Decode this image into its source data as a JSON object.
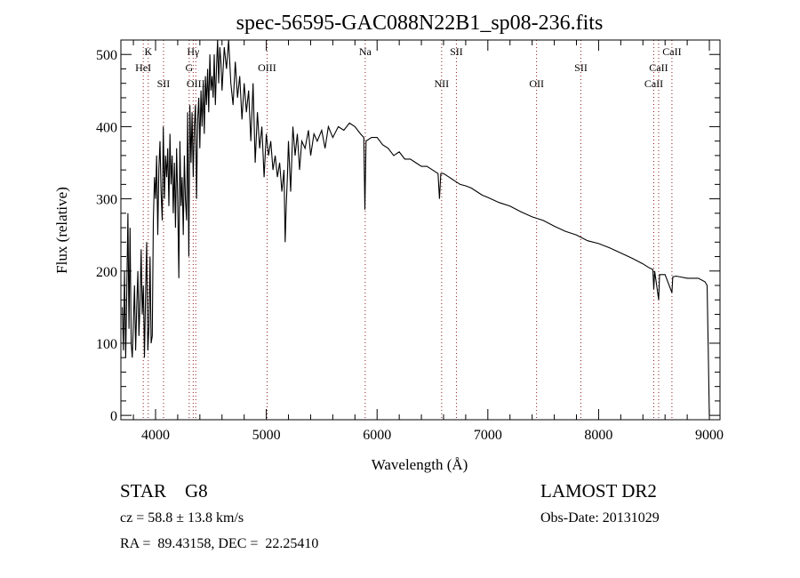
{
  "chart_data": {
    "type": "line",
    "title": "spec-56595-GAC088N22B1_sp08-236.fits",
    "xlabel": "Wavelength (Å)",
    "ylabel": "Flux (relative)",
    "xlim": [
      3687,
      9096
    ],
    "ylim": [
      -6,
      520
    ],
    "xticks": [
      4000,
      5000,
      6000,
      7000,
      8000,
      9000
    ],
    "yticks": [
      0,
      100,
      200,
      300,
      400,
      500
    ],
    "grid": false,
    "series": [
      {
        "name": "spectrum",
        "x": [
          3700,
          3710,
          3720,
          3730,
          3740,
          3750,
          3760,
          3770,
          3780,
          3790,
          3800,
          3810,
          3820,
          3830,
          3840,
          3850,
          3860,
          3870,
          3880,
          3890,
          3900,
          3910,
          3920,
          3930,
          3940,
          3950,
          3960,
          3970,
          3980,
          3990,
          4000,
          4010,
          4020,
          4030,
          4040,
          4050,
          4060,
          4070,
          4080,
          4090,
          4100,
          4110,
          4120,
          4130,
          4140,
          4150,
          4160,
          4170,
          4180,
          4190,
          4200,
          4210,
          4220,
          4230,
          4240,
          4250,
          4260,
          4270,
          4280,
          4290,
          4300,
          4310,
          4320,
          4330,
          4340,
          4350,
          4360,
          4370,
          4380,
          4390,
          4400,
          4410,
          4420,
          4430,
          4440,
          4450,
          4460,
          4470,
          4480,
          4490,
          4500,
          4510,
          4520,
          4530,
          4540,
          4550,
          4560,
          4570,
          4580,
          4590,
          4600,
          4620,
          4640,
          4660,
          4680,
          4700,
          4720,
          4740,
          4760,
          4780,
          4800,
          4820,
          4840,
          4860,
          4880,
          4900,
          4920,
          4940,
          4960,
          4980,
          5000,
          5020,
          5040,
          5060,
          5080,
          5100,
          5120,
          5140,
          5160,
          5170,
          5180,
          5190,
          5200,
          5220,
          5240,
          5260,
          5280,
          5300,
          5320,
          5350,
          5380,
          5400,
          5430,
          5460,
          5500,
          5530,
          5560,
          5600,
          5650,
          5700,
          5750,
          5800,
          5850,
          5880,
          5890,
          5900,
          5950,
          6000,
          6050,
          6100,
          6150,
          6200,
          6250,
          6300,
          6350,
          6400,
          6450,
          6500,
          6550,
          6563,
          6575,
          6600,
          6650,
          6700,
          6750,
          6800,
          6850,
          6900,
          6950,
          7000,
          7100,
          7200,
          7300,
          7400,
          7500,
          7600,
          7700,
          7800,
          7900,
          8000,
          8100,
          8200,
          8300,
          8400,
          8450,
          8490,
          8498,
          8506,
          8542,
          8550,
          8600,
          8662,
          8670,
          8700,
          8800,
          8900,
          8960,
          8980,
          8990,
          9000
        ],
        "y": [
          150,
          90,
          200,
          80,
          170,
          280,
          120,
          260,
          100,
          80,
          130,
          180,
          90,
          150,
          200,
          110,
          160,
          230,
          140,
          180,
          80,
          170,
          240,
          90,
          120,
          220,
          100,
          110,
          270,
          330,
          300,
          360,
          250,
          340,
          380,
          310,
          270,
          400,
          300,
          360,
          330,
          370,
          290,
          390,
          320,
          360,
          280,
          350,
          260,
          370,
          300,
          190,
          380,
          290,
          330,
          250,
          360,
          300,
          270,
          420,
          220,
          430,
          350,
          420,
          330,
          400,
          430,
          300,
          410,
          440,
          370,
          450,
          400,
          460,
          390,
          470,
          430,
          480,
          420,
          500,
          450,
          470,
          440,
          500,
          430,
          480,
          520,
          460,
          510,
          490,
          450,
          510,
          480,
          520,
          460,
          430,
          490,
          440,
          470,
          410,
          460,
          420,
          450,
          380,
          460,
          350,
          420,
          370,
          400,
          330,
          390,
          360,
          380,
          340,
          360,
          330,
          350,
          310,
          340,
          240,
          290,
          330,
          380,
          310,
          400,
          360,
          390,
          340,
          380,
          370,
          395,
          360,
          390,
          380,
          395,
          370,
          400,
          385,
          400,
          395,
          405,
          400,
          390,
          385,
          285,
          380,
          385,
          385,
          375,
          370,
          360,
          365,
          355,
          355,
          350,
          345,
          345,
          340,
          335,
          300,
          335,
          335,
          330,
          325,
          320,
          318,
          315,
          310,
          305,
          302,
          295,
          290,
          282,
          275,
          270,
          262,
          255,
          250,
          242,
          238,
          232,
          225,
          218,
          210,
          205,
          202,
          175,
          200,
          160,
          195,
          195,
          170,
          192,
          193,
          190,
          190,
          185,
          180,
          90,
          0
        ]
      }
    ],
    "line_ids": [
      {
        "label": "K",
        "wavelength": 3934,
        "row": 0
      },
      {
        "label": "HeI",
        "wavelength": 3889,
        "row": 1
      },
      {
        "label": "SII",
        "wavelength": 4072,
        "row": 2
      },
      {
        "label": "Hγ",
        "wavelength": 4340,
        "row": 0
      },
      {
        "label": "G",
        "wavelength": 4304,
        "row": 1
      },
      {
        "label": "OIII",
        "wavelength": 4363,
        "row": 2
      },
      {
        "label": "OIII",
        "wavelength": 5007,
        "row": 1
      },
      {
        "label": "Na",
        "wavelength": 5893,
        "row": 0
      },
      {
        "label": "NII",
        "wavelength": 6583,
        "row": 2
      },
      {
        "label": "SII",
        "wavelength": 6716,
        "row": 0
      },
      {
        "label": "OII",
        "wavelength": 7440,
        "row": 2
      },
      {
        "label": "SII",
        "wavelength": 7840,
        "row": 1
      },
      {
        "label": "CaII",
        "wavelength": 8498,
        "row": 2
      },
      {
        "label": "CaII",
        "wavelength": 8542,
        "row": 1
      },
      {
        "label": "CaII",
        "wavelength": 8662,
        "row": 0
      }
    ],
    "line_color": "#000000",
    "marker_color": "#8b1a1a"
  },
  "info": {
    "object_class": "STAR",
    "subclass": "G8",
    "survey": "LAMOST DR2",
    "redshift": "cz = 58.8 ± 13.8 km/s",
    "obs_date": "Obs-Date: 20131029",
    "coords": "RA =  89.43158, DEC =  22.25410"
  }
}
